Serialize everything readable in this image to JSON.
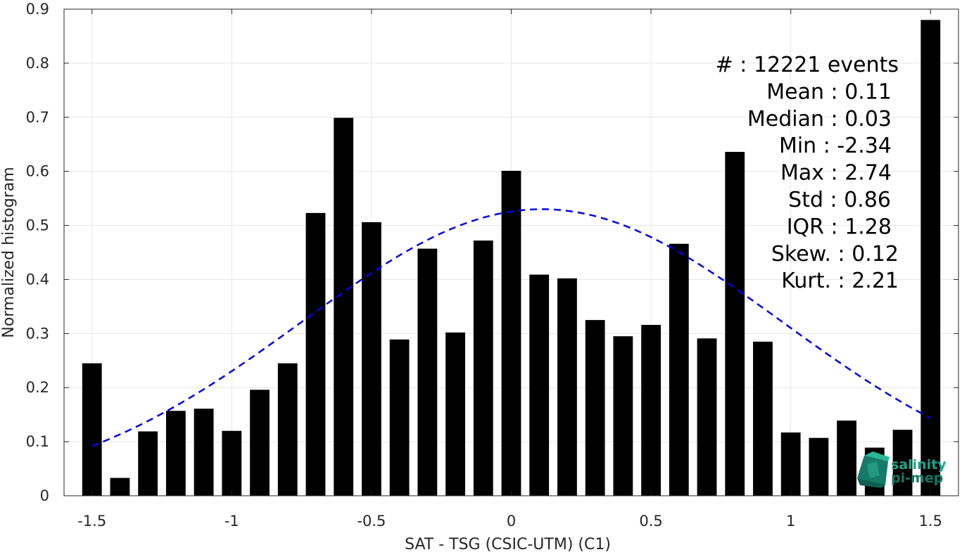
{
  "chart_data": {
    "type": "bar",
    "xlabel": "SAT - TSG (CSIC-UTM) (C1)",
    "ylabel": "Normalized histogram",
    "xlim": [
      -1.6,
      1.6
    ],
    "ylim": [
      0,
      0.9
    ],
    "xticks": [
      -1.5,
      -1,
      -0.5,
      0,
      0.5,
      1,
      1.5
    ],
    "xtick_labels": [
      "-1.5",
      "-1",
      "-0.5",
      "0",
      "0.5",
      "1",
      "1.5"
    ],
    "yticks": [
      0,
      0.1,
      0.2,
      0.3,
      0.4,
      0.5,
      0.6,
      0.7,
      0.8,
      0.9
    ],
    "ytick_labels": [
      "0",
      "0.1",
      "0.2",
      "0.3",
      "0.4",
      "0.5",
      "0.6",
      "0.7",
      "0.8",
      "0.9"
    ],
    "grid": true,
    "bar_color": "#000000",
    "bar_width": 0.07,
    "x": [
      -1.5,
      -1.4,
      -1.3,
      -1.2,
      -1.1,
      -1.0,
      -0.9,
      -0.8,
      -0.7,
      -0.6,
      -0.5,
      -0.4,
      -0.3,
      -0.2,
      -0.1,
      0.0,
      0.1,
      0.2,
      0.3,
      0.4,
      0.5,
      0.6,
      0.7,
      0.8,
      0.9,
      1.0,
      1.1,
      1.2,
      1.3,
      1.4,
      1.5
    ],
    "values": [
      0.245,
      0.033,
      0.119,
      0.157,
      0.161,
      0.12,
      0.196,
      0.245,
      0.523,
      0.699,
      0.506,
      0.289,
      0.457,
      0.302,
      0.472,
      0.601,
      0.409,
      0.402,
      0.325,
      0.295,
      0.316,
      0.466,
      0.291,
      0.636,
      0.285,
      0.117,
      0.107,
      0.139,
      0.089,
      0.122,
      0.88
    ],
    "fit": {
      "type": "gaussian",
      "color": "#0000e6",
      "style": "dashed",
      "mean": 0.11,
      "std": 0.86,
      "peak": 0.53,
      "x_range": [
        -1.5,
        1.5
      ]
    },
    "stats": [
      {
        "label": "#  ",
        "value": ": 12221 events"
      },
      {
        "label": "Mean ",
        "value": ": 0.11"
      },
      {
        "label": "Median ",
        "value": ": 0.03"
      },
      {
        "label": "Min ",
        "value": ": -2.34"
      },
      {
        "label": "Max ",
        "value": ": 2.74"
      },
      {
        "label": "Std ",
        "value": ": 0.86"
      },
      {
        "label": "IQR ",
        "value": ": 1.28"
      },
      {
        "label": "Skew. ",
        "value": ": 0.12"
      },
      {
        "label": "Kurt. ",
        "value": ": 2.21"
      }
    ]
  },
  "logo": {
    "line1": "salinity",
    "line2": "pi-mep",
    "color": "#1aa58c"
  }
}
